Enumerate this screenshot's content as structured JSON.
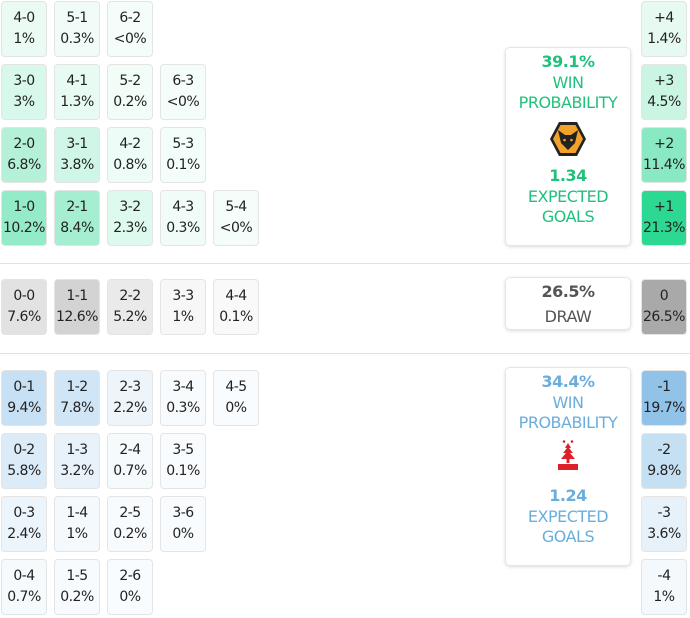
{
  "colors": {
    "home": "#22c07d",
    "away": "#6aaedc",
    "draw": "#555555"
  },
  "home_scores": [
    [
      {
        "s": "4-0",
        "p": "1%"
      },
      {
        "s": "5-1",
        "p": "0.3%"
      },
      {
        "s": "6-2",
        "p": "<0%"
      }
    ],
    [
      {
        "s": "3-0",
        "p": "3%"
      },
      {
        "s": "4-1",
        "p": "1.3%"
      },
      {
        "s": "5-2",
        "p": "0.2%"
      },
      {
        "s": "6-3",
        "p": "<0%"
      }
    ],
    [
      {
        "s": "2-0",
        "p": "6.8%"
      },
      {
        "s": "3-1",
        "p": "3.8%"
      },
      {
        "s": "4-2",
        "p": "0.8%"
      },
      {
        "s": "5-3",
        "p": "0.1%"
      }
    ],
    [
      {
        "s": "1-0",
        "p": "10.2%"
      },
      {
        "s": "2-1",
        "p": "8.4%"
      },
      {
        "s": "3-2",
        "p": "2.3%"
      },
      {
        "s": "4-3",
        "p": "0.3%"
      },
      {
        "s": "5-4",
        "p": "<0%"
      }
    ]
  ],
  "draw_scores": [
    [
      {
        "s": "0-0",
        "p": "7.6%"
      },
      {
        "s": "1-1",
        "p": "12.6%"
      },
      {
        "s": "2-2",
        "p": "5.2%"
      },
      {
        "s": "3-3",
        "p": "1%"
      },
      {
        "s": "4-4",
        "p": "0.1%"
      }
    ]
  ],
  "away_scores": [
    [
      {
        "s": "0-1",
        "p": "9.4%"
      },
      {
        "s": "1-2",
        "p": "7.8%"
      },
      {
        "s": "2-3",
        "p": "2.2%"
      },
      {
        "s": "3-4",
        "p": "0.3%"
      },
      {
        "s": "4-5",
        "p": "0%"
      }
    ],
    [
      {
        "s": "0-2",
        "p": "5.8%"
      },
      {
        "s": "1-3",
        "p": "3.2%"
      },
      {
        "s": "2-4",
        "p": "0.7%"
      },
      {
        "s": "3-5",
        "p": "0.1%"
      }
    ],
    [
      {
        "s": "0-3",
        "p": "2.4%"
      },
      {
        "s": "1-4",
        "p": "1%"
      },
      {
        "s": "2-5",
        "p": "0.2%"
      },
      {
        "s": "3-6",
        "p": "0%"
      }
    ],
    [
      {
        "s": "0-4",
        "p": "0.7%"
      },
      {
        "s": "1-5",
        "p": "0.2%"
      },
      {
        "s": "2-6",
        "p": "0%"
      }
    ]
  ],
  "margins": {
    "home": [
      {
        "s": "+4",
        "p": "1.4%"
      },
      {
        "s": "+3",
        "p": "4.5%"
      },
      {
        "s": "+2",
        "p": "11.4%"
      },
      {
        "s": "+1",
        "p": "21.3%"
      }
    ],
    "draw": [
      {
        "s": "0",
        "p": "26.5%"
      }
    ],
    "away": [
      {
        "s": "-1",
        "p": "19.7%"
      },
      {
        "s": "-2",
        "p": "9.8%"
      },
      {
        "s": "-3",
        "p": "3.6%"
      },
      {
        "s": "-4",
        "p": "1%"
      }
    ]
  },
  "home": {
    "win_pct": "39.1%",
    "win_label_1": "WIN",
    "win_label_2": "PROBABILITY",
    "xg": "1.34",
    "xg_label_1": "EXPECTED",
    "xg_label_2": "GOALS",
    "crest": "wolves-crest"
  },
  "draw": {
    "pct": "26.5%",
    "label": "DRAW"
  },
  "away": {
    "win_pct": "34.4%",
    "win_label_1": "WIN",
    "win_label_2": "PROBABILITY",
    "xg": "1.24",
    "xg_label_1": "EXPECTED",
    "xg_label_2": "GOALS",
    "crest": "forest-crest"
  }
}
